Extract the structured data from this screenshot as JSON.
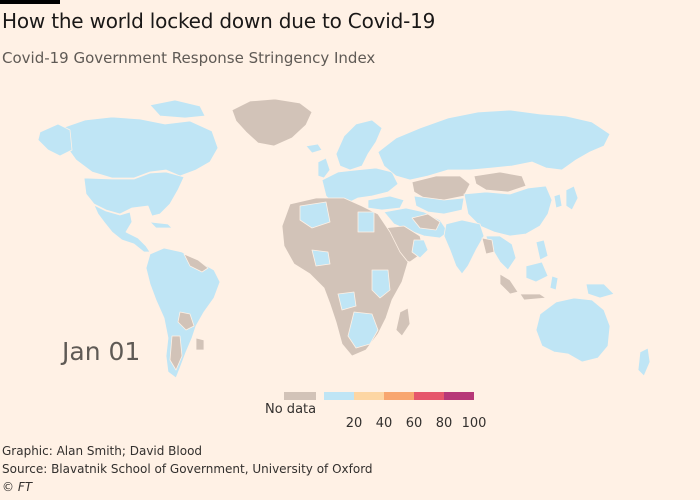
{
  "title": "How the world locked down due to Covid-19",
  "subtitle": "Covid-19 Government Response Stringency Index",
  "date_label": "Jan 01",
  "legend": {
    "no_data_label": "No data",
    "no_data_color": "#d2c3b8",
    "bins": [
      {
        "from": 0,
        "to": 20,
        "color": "#bfe5f5"
      },
      {
        "from": 20,
        "to": 40,
        "color": "#fdd6a3"
      },
      {
        "from": 40,
        "to": 60,
        "color": "#f8a66f"
      },
      {
        "from": 60,
        "to": 80,
        "color": "#e6566b"
      },
      {
        "from": 80,
        "to": 100,
        "color": "#b73878"
      }
    ],
    "ticks": [
      "20",
      "40",
      "60",
      "80",
      "100"
    ]
  },
  "colors": {
    "background": "#fff1e5",
    "low_stringency": "#bfe5f5",
    "no_data": "#d2c3b8"
  },
  "credits": {
    "graphic": "Graphic: Alan Smith; David Blood",
    "source": "Source: Blavatnik School of Government, University of Oxford",
    "copyright": "© FT"
  }
}
